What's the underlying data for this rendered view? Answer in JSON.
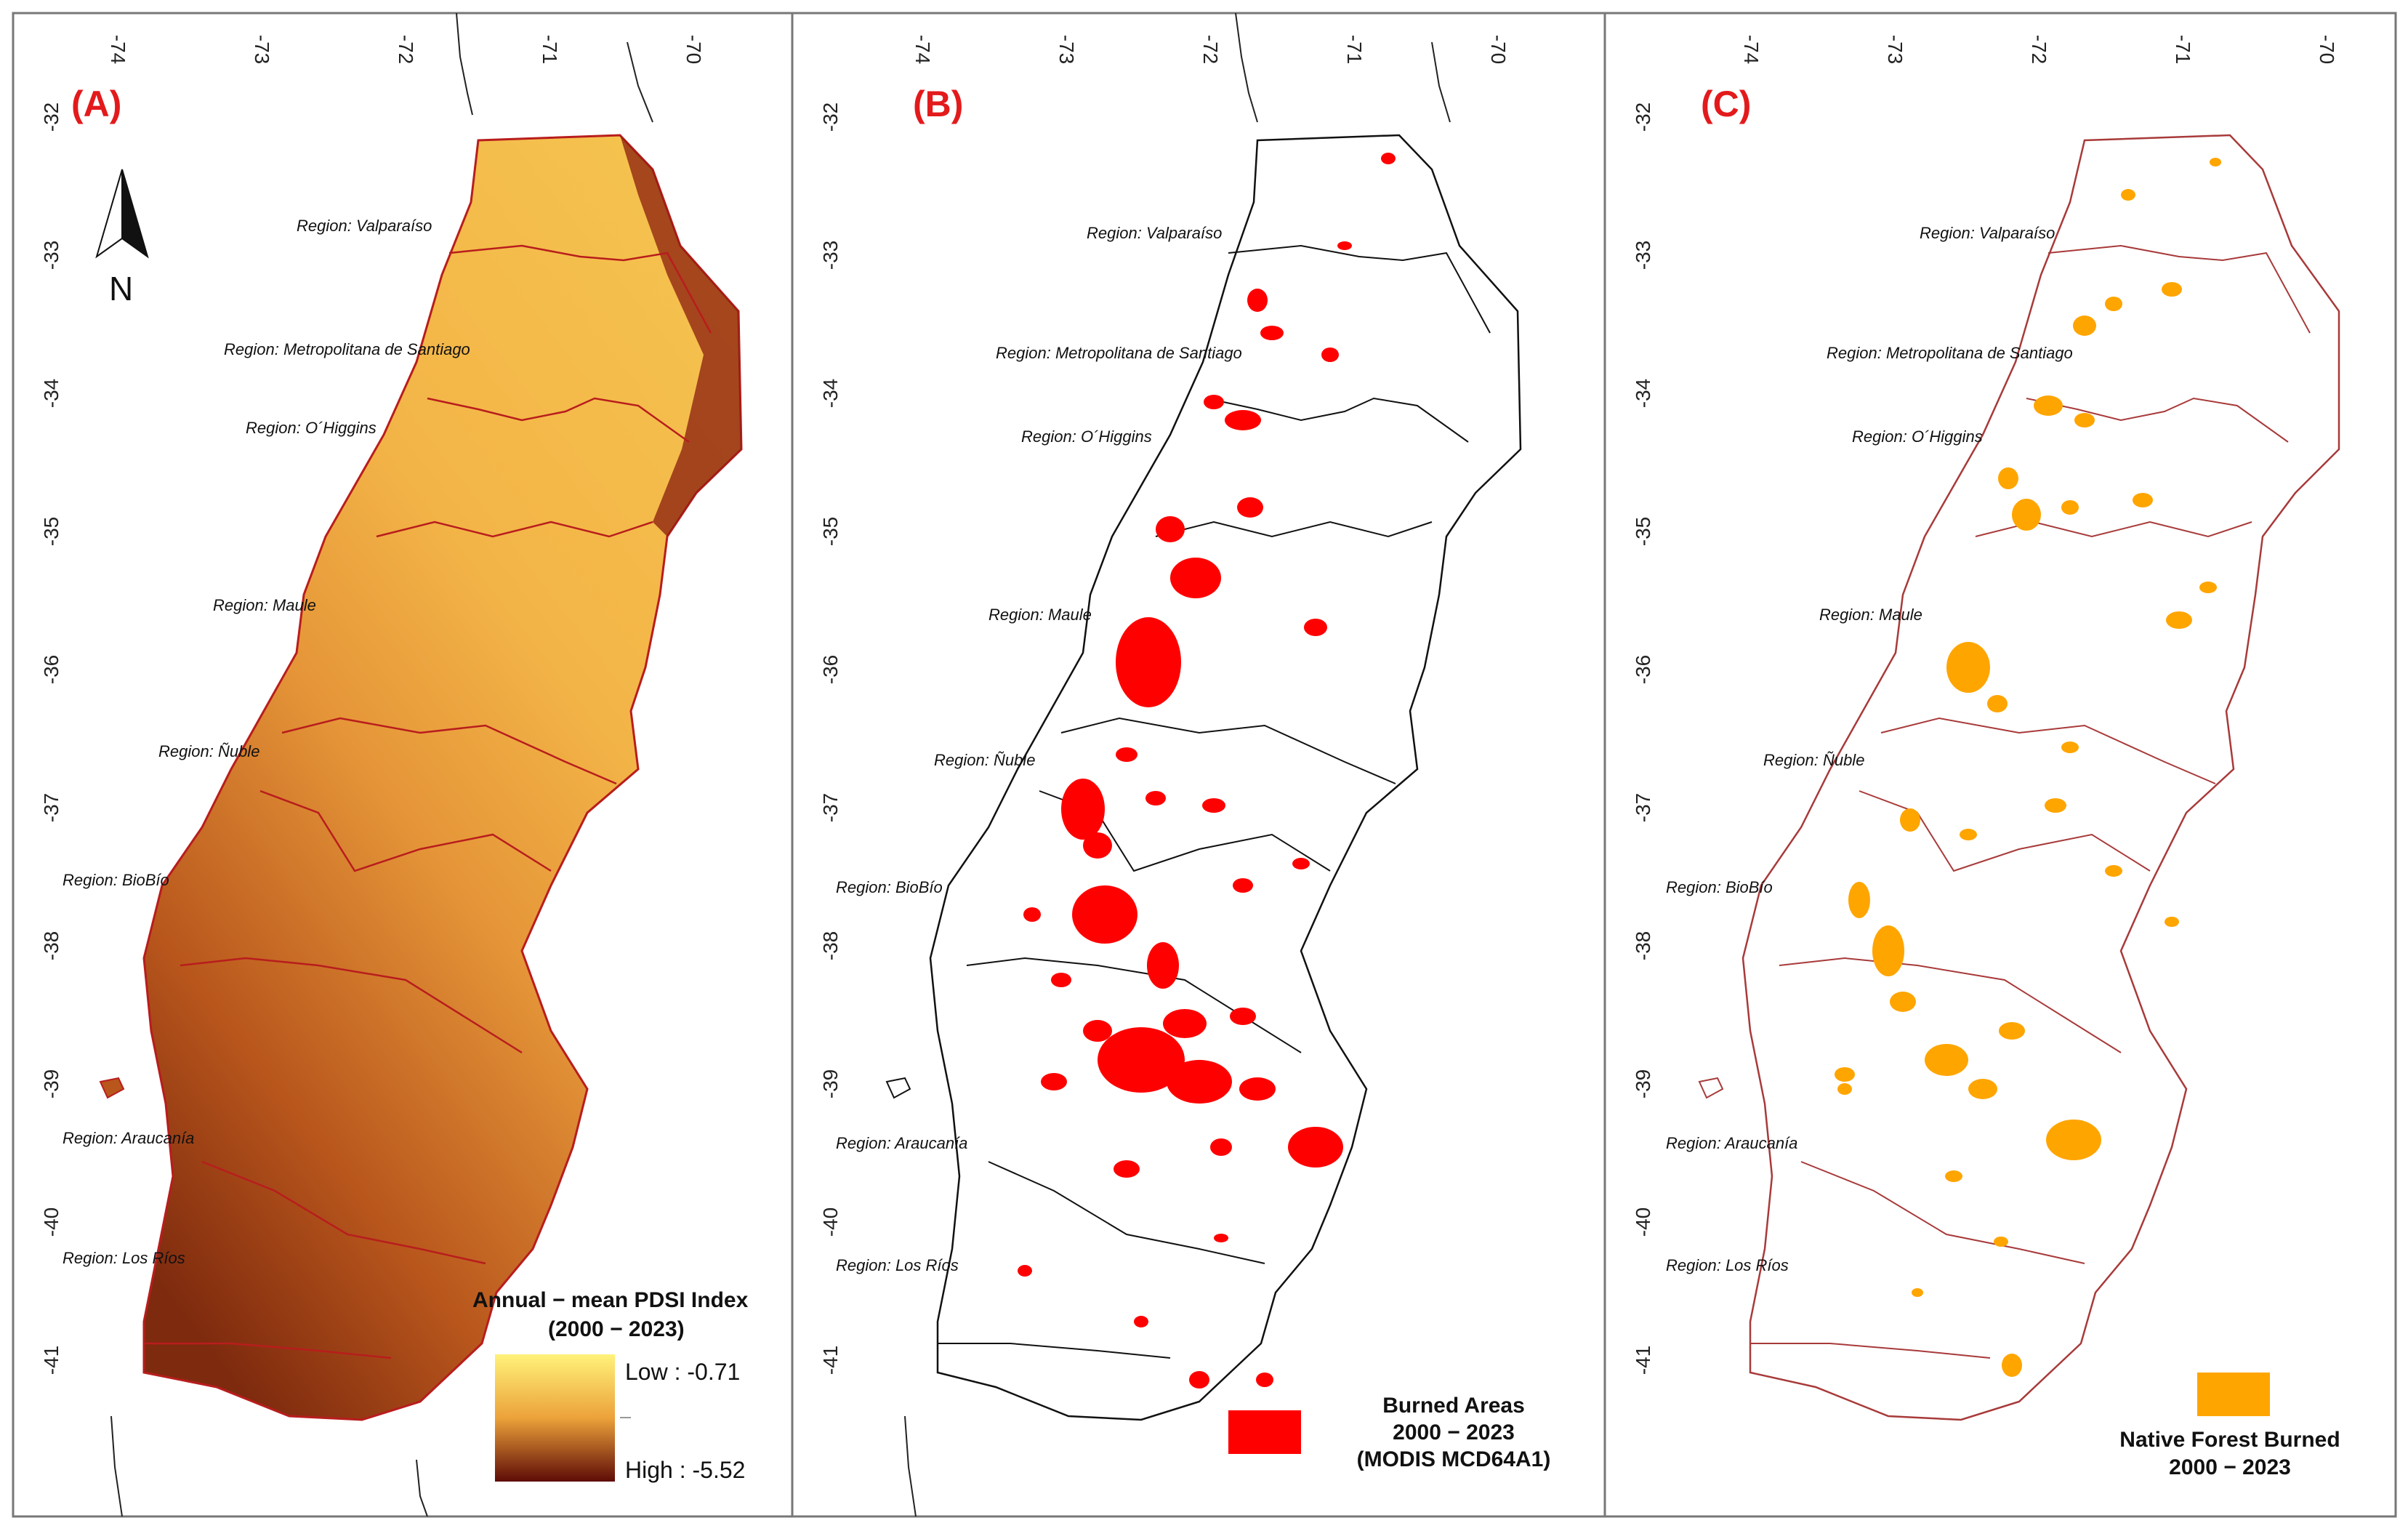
{
  "axes": {
    "lon_ticks": [
      "-74",
      "-73",
      "-72",
      "-71",
      "-70"
    ],
    "lat_ticks": [
      "-32",
      "-33",
      "-34",
      "-35",
      "-36",
      "-37",
      "-38",
      "-39",
      "-40",
      "-41"
    ]
  },
  "panels": [
    {
      "id": "a",
      "label": "(A)",
      "legend": {
        "title_line1": "Annual − mean PDSI Index",
        "title_line2": "(2000 − 2023)",
        "low_label": "Low : -0.71",
        "high_label": "High : -5.52"
      },
      "fill_color": "#f0a830"
    },
    {
      "id": "b",
      "label": "(B)",
      "legend": {
        "line1": "Burned Areas",
        "line2": "2000 − 2023",
        "line3": "(MODIS MCD64A1)"
      },
      "fill_color": "#ff0000"
    },
    {
      "id": "c",
      "label": "(C)",
      "legend": {
        "line1": "Native Forest Burned",
        "line2": "2000 − 2023"
      },
      "fill_color": "#ffa500"
    }
  ],
  "regions": [
    {
      "name": "Region: Valparaíso"
    },
    {
      "name": "Region: Metropolitana de Santiago"
    },
    {
      "name": "Region: O´Higgins"
    },
    {
      "name": "Region: Maule"
    },
    {
      "name": "Region: Ñuble"
    },
    {
      "name": "Region: BioBío"
    },
    {
      "name": "Region: Araucanía"
    },
    {
      "name": "Region: Los Ríos"
    }
  ],
  "north_arrow": {
    "label": "N"
  },
  "colors": {
    "pdsi_low": "#fff27a",
    "pdsi_mid": "#eca23a",
    "pdsi_high": "#5e0b06",
    "boundary_a": "#b81d1d",
    "boundary_b": "#111111",
    "boundary_c": "#a83a3a",
    "burned": "#ff0000",
    "native_forest": "#ffa500"
  }
}
